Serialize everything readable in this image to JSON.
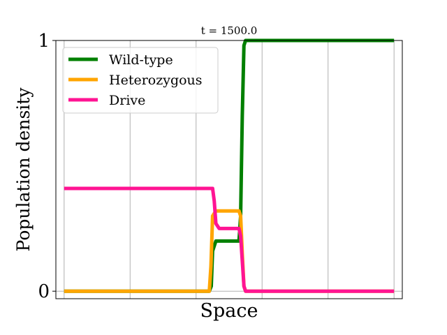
{
  "chart_data": {
    "type": "line",
    "title": "t = 1500.0",
    "xlabel": "Space",
    "ylabel": "Population density",
    "xlim": [
      -0.025,
      1.025
    ],
    "ylim": [
      -0.03,
      1.0
    ],
    "yticks": [
      0,
      1
    ],
    "ytick_labels": [
      "0",
      "1"
    ],
    "xticks": [
      0,
      0.2,
      0.4,
      0.6,
      0.8,
      1.0
    ],
    "xtick_labels": [],
    "grid": true,
    "legend_position": "upper left",
    "series": [
      {
        "name": "Wild-type",
        "color": "#008000",
        "x": [
          0,
          0.44,
          0.446,
          0.45,
          0.46,
          0.53,
          0.535,
          0.54,
          0.545,
          0.55,
          1.0
        ],
        "y": [
          0,
          0,
          0.02,
          0.16,
          0.2,
          0.2,
          0.3,
          0.7,
          0.98,
          1.0,
          1.0
        ]
      },
      {
        "name": "Heterozygous",
        "color": "#FFA500",
        "x": [
          0,
          0.44,
          0.445,
          0.45,
          0.46,
          0.53,
          0.535,
          0.54,
          0.545,
          0.55,
          1.0
        ],
        "y": [
          0,
          0,
          0.1,
          0.3,
          0.32,
          0.32,
          0.3,
          0.15,
          0.02,
          0,
          0
        ]
      },
      {
        "name": "Drive",
        "color": "#FF1493",
        "x": [
          0,
          0.45,
          0.455,
          0.46,
          0.47,
          0.53,
          0.535,
          0.54,
          0.545,
          0.55,
          1.0
        ],
        "y": [
          0.41,
          0.41,
          0.36,
          0.27,
          0.25,
          0.25,
          0.22,
          0.12,
          0.02,
          0,
          0
        ]
      }
    ]
  }
}
